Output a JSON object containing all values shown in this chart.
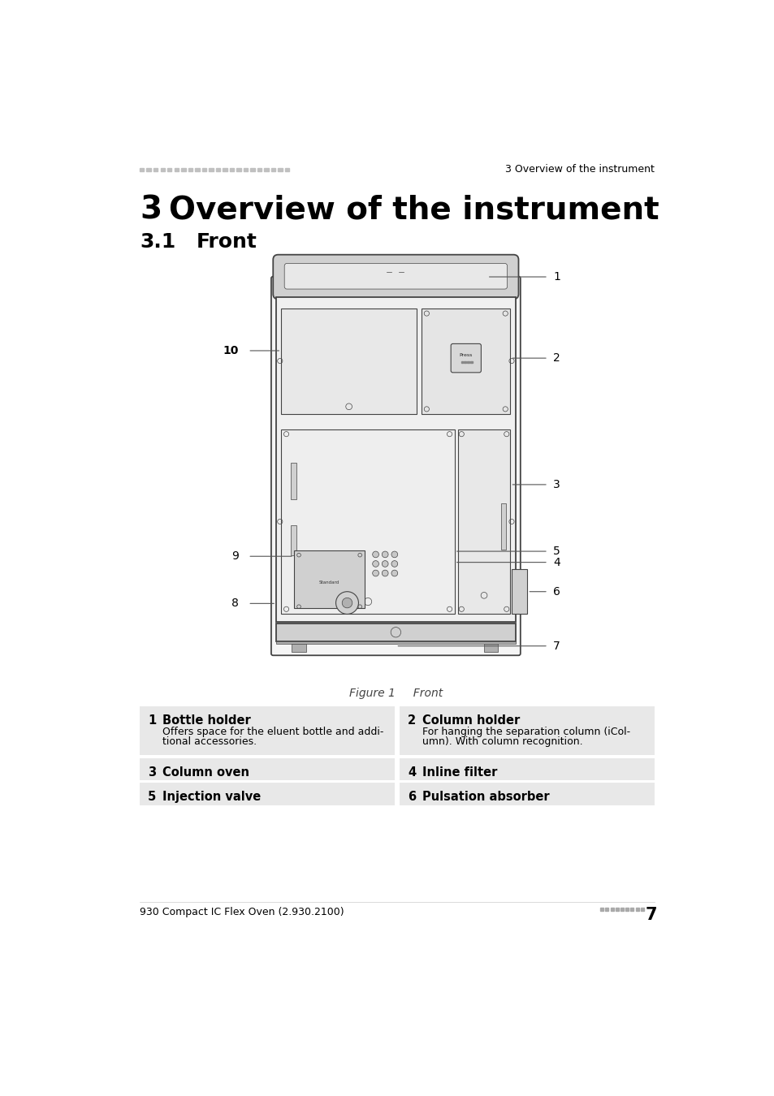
{
  "page_bg": "#ffffff",
  "header_right": "3 Overview of the instrument",
  "title_line": "3   Overview of the instrument",
  "section_line": "3.1      Front",
  "figure_caption": "Figure 1     Front",
  "footer_left": "930 Compact IC Flex Oven (2.930.2100)",
  "footer_page": "7",
  "table_bg": "#e8e8e8",
  "table_rows": [
    {
      "left_num": "1",
      "left_title": "Bottle holder",
      "left_desc": "Offers space for the eluent bottle and addi-\ntional accessories.",
      "right_num": "2",
      "right_title": "Column holder",
      "right_desc": "For hanging the separation column (iCol-\numn). With column recognition."
    },
    {
      "left_num": "3",
      "left_title": "Column oven",
      "left_desc": "",
      "right_num": "4",
      "right_title": "Inline filter",
      "right_desc": ""
    },
    {
      "left_num": "5",
      "left_title": "Injection valve",
      "left_desc": "",
      "right_num": "6",
      "right_title": "Pulsation absorber",
      "right_desc": ""
    }
  ],
  "dot_color": "#aaaaaa",
  "text_color": "#000000",
  "header_dot_color": "#c0c0c0",
  "line_color": "#444444",
  "light_gray": "#e8e8e8",
  "mid_gray": "#d0d0d0",
  "dark_gray": "#b0b0b0"
}
